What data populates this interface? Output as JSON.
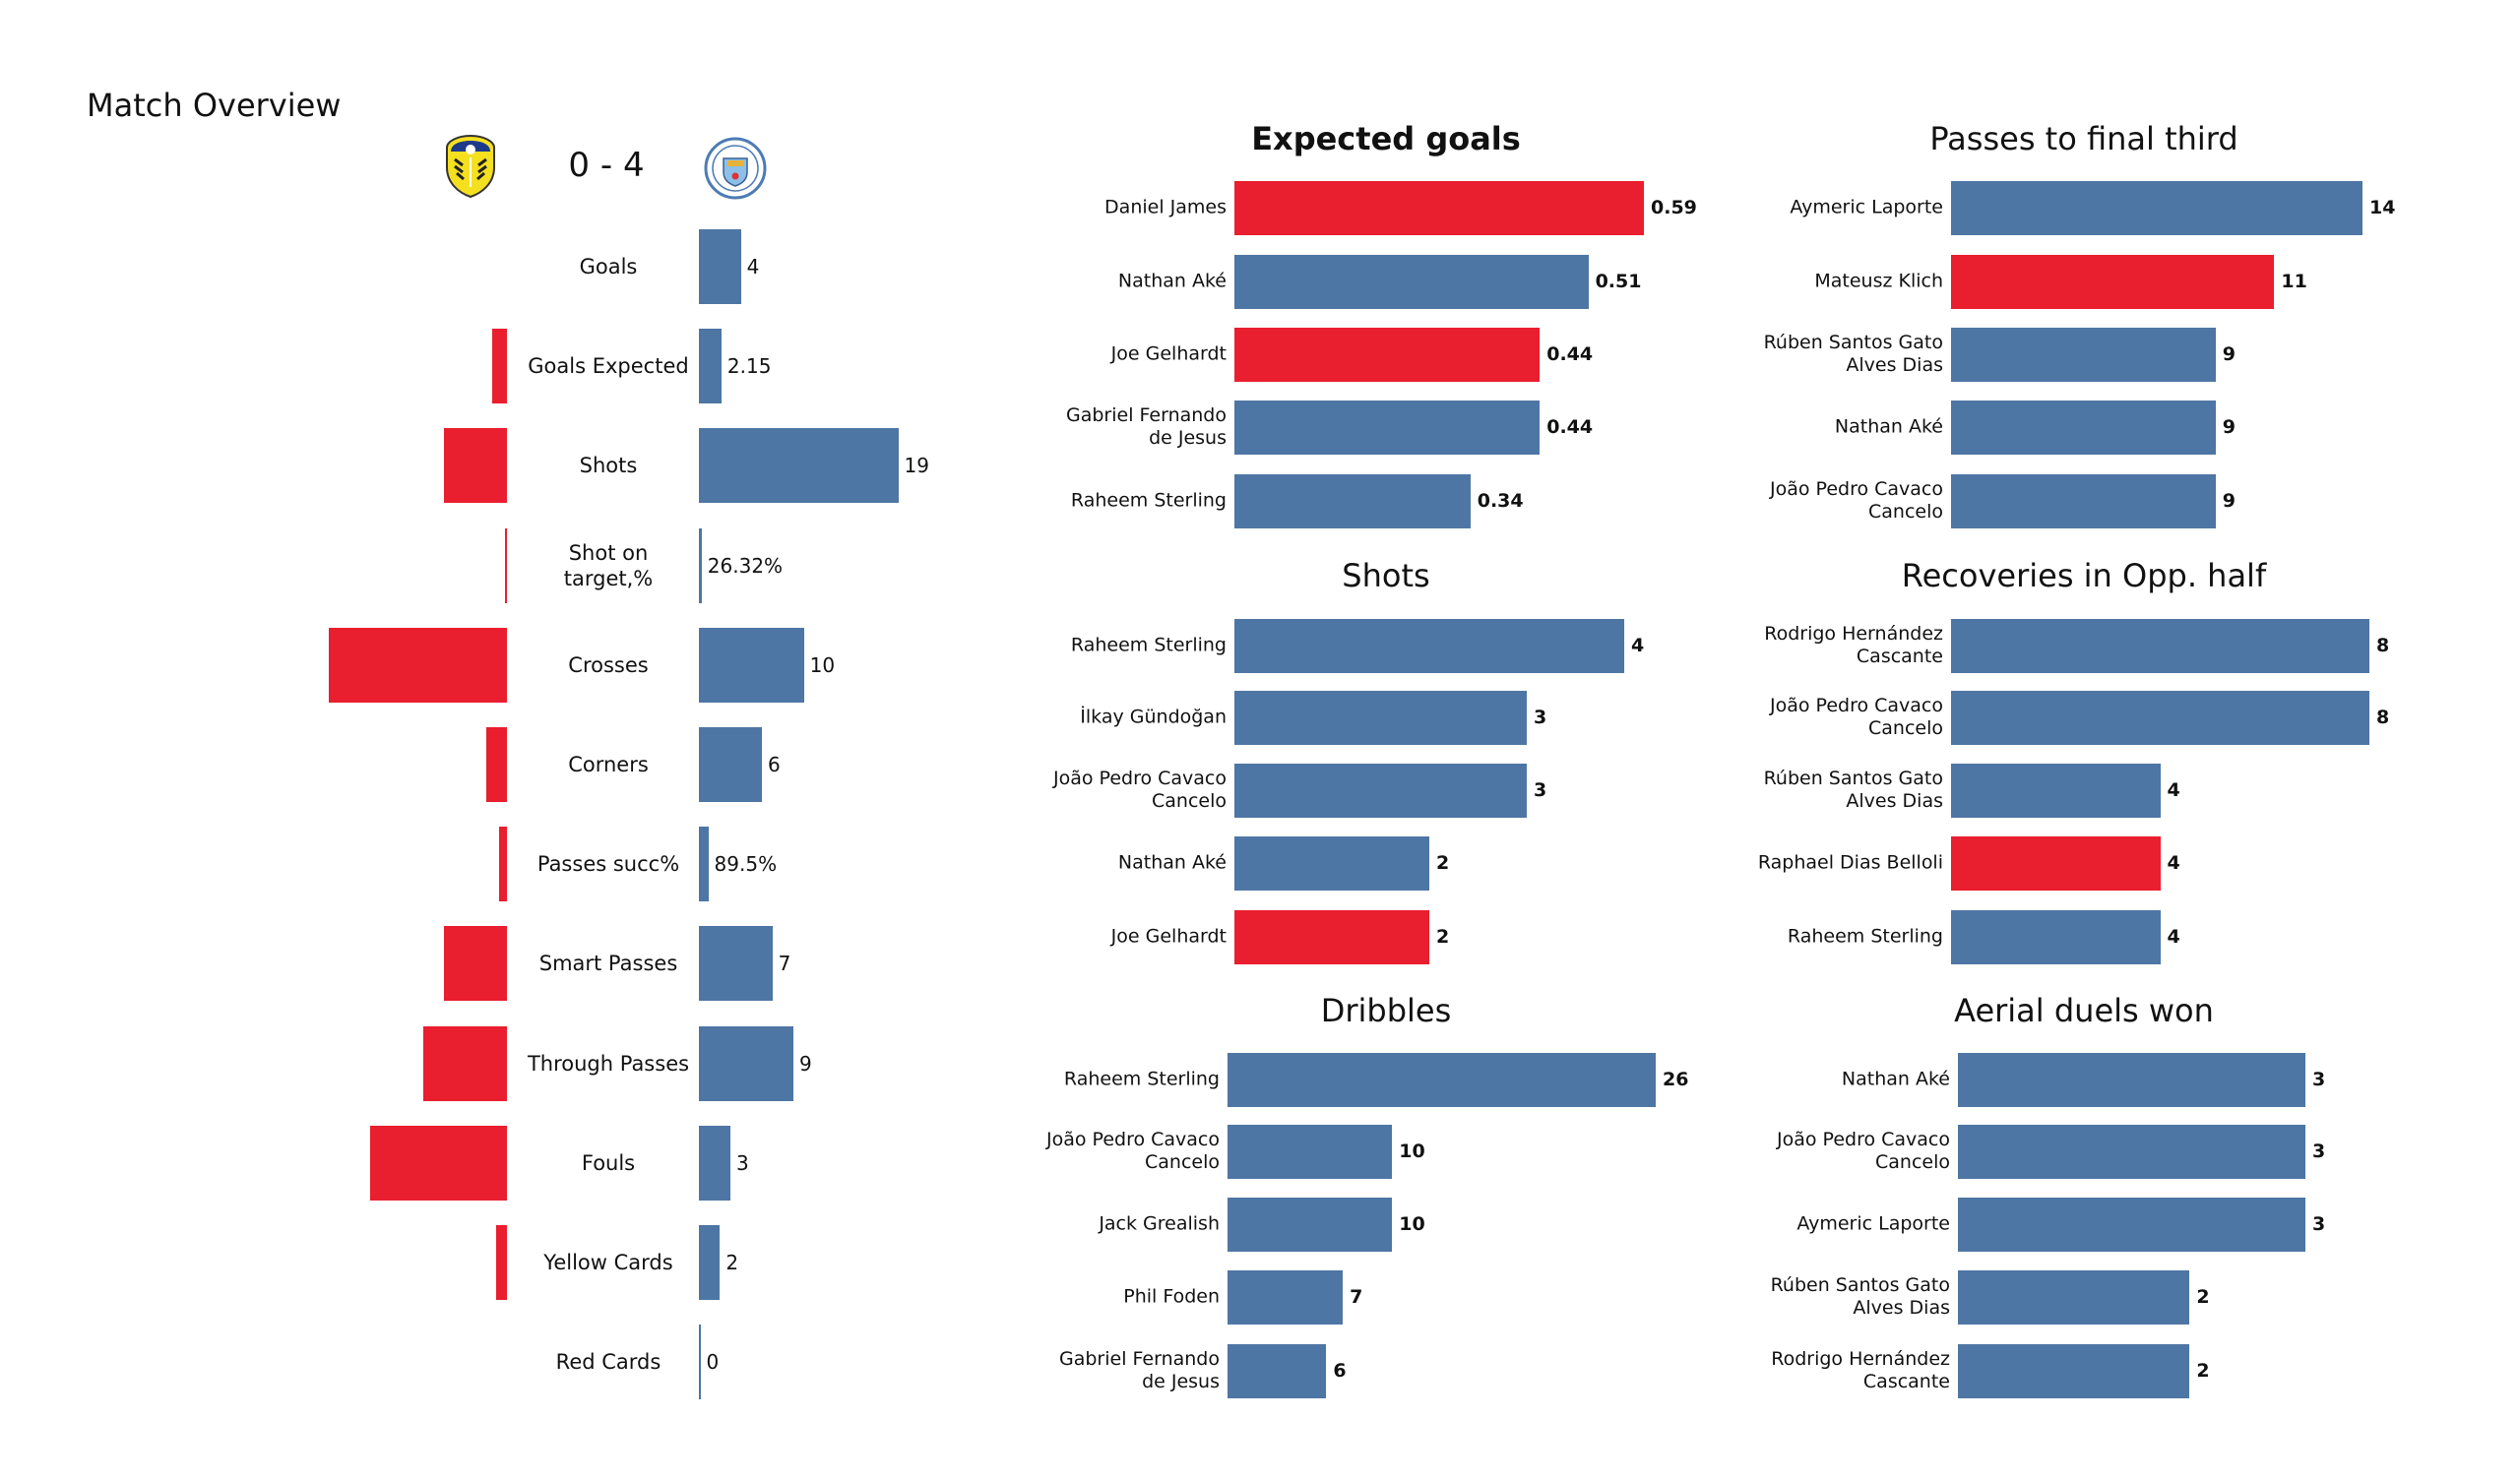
{
  "page_title": "Match Overview",
  "match": {
    "home_team_crest": "leeds-united-crest-icon",
    "away_team_crest": "manchester-city-crest-icon",
    "score": "0 - 4"
  },
  "colors": {
    "home": "#E91E2E",
    "away": "#4E76A4",
    "text": "#111111"
  },
  "chart_data": [
    {
      "type": "bar",
      "title": "Match Overview",
      "orientation": "diverging-horizontal",
      "series": [
        {
          "name": "Leeds United",
          "color": "#E91E2E"
        },
        {
          "name": "Manchester City",
          "color": "#4E76A4"
        }
      ],
      "rows": [
        {
          "label": "Goals",
          "home": "0",
          "away": "4",
          "home_value": 0,
          "away_value": 4
        },
        {
          "label": "Goals Expected",
          "home": "1.44",
          "away": "2.15",
          "home_value": 1.44,
          "away_value": 2.15
        },
        {
          "label": "Shots",
          "home": "6",
          "away": "19",
          "home_value": 6,
          "away_value": 19
        },
        {
          "label": "Shot on\ntarget,%",
          "home": "16.67%",
          "away": "26.32%",
          "home_value": 0.1667,
          "away_value": 0.2632
        },
        {
          "label": "Crosses",
          "home": "17",
          "away": "10",
          "home_value": 17,
          "away_value": 10
        },
        {
          "label": "Corners",
          "home": "2",
          "away": "6",
          "home_value": 2,
          "away_value": 6
        },
        {
          "label": "Passes succ%",
          "home": "79.7%",
          "away": "89.5%",
          "home_value": 0.797,
          "away_value": 0.895
        },
        {
          "label": "Smart Passes",
          "home": "6",
          "away": "7",
          "home_value": 6,
          "away_value": 7
        },
        {
          "label": "Through Passes",
          "home": "8",
          "away": "9",
          "home_value": 8,
          "away_value": 9
        },
        {
          "label": "Fouls",
          "home": "13",
          "away": "3",
          "home_value": 13,
          "away_value": 3
        },
        {
          "label": "Yellow Cards",
          "home": "1",
          "away": "2",
          "home_value": 1,
          "away_value": 2
        },
        {
          "label": "Red Cards",
          "home": "0",
          "away": "0",
          "home_value": 0,
          "away_value": 0
        }
      ]
    },
    {
      "type": "bar",
      "orientation": "horizontal",
      "title": "Expected goals",
      "title_bold": true,
      "categories": [
        "Daniel James",
        "Nathan Aké",
        "Joe Gelhardt",
        "Gabriel Fernando\nde Jesus",
        "Raheem Sterling"
      ],
      "values": [
        0.59,
        0.51,
        0.44,
        0.44,
        0.34
      ],
      "value_labels": [
        "0.59",
        "0.51",
        "0.44",
        "0.44",
        "0.34"
      ],
      "teams": [
        "home",
        "away",
        "home",
        "away",
        "away"
      ],
      "xlim": [
        0,
        0.59
      ]
    },
    {
      "type": "bar",
      "orientation": "horizontal",
      "title": "Passes to final third",
      "title_bold": false,
      "categories": [
        "Aymeric  Laporte",
        "Mateusz Klich",
        "Rúben  Santos Gato\nAlves Dias",
        "Nathan Aké",
        "João Pedro Cavaco\nCancelo"
      ],
      "values": [
        14,
        11,
        9,
        9,
        9
      ],
      "value_labels": [
        "14",
        "11",
        "9",
        "9",
        "9"
      ],
      "teams": [
        "away",
        "home",
        "away",
        "away",
        "away"
      ],
      "xlim": [
        0,
        14
      ]
    },
    {
      "type": "bar",
      "orientation": "horizontal",
      "title": "Shots",
      "title_bold": false,
      "categories": [
        "Raheem Sterling",
        "İlkay Gündoğan",
        "João Pedro Cavaco\nCancelo",
        "Nathan Aké",
        "Joe Gelhardt"
      ],
      "values": [
        4,
        3,
        3,
        2,
        2
      ],
      "value_labels": [
        "4",
        "3",
        "3",
        "2",
        "2"
      ],
      "teams": [
        "away",
        "away",
        "away",
        "away",
        "home"
      ],
      "xlim": [
        0,
        4
      ]
    },
    {
      "type": "bar",
      "orientation": "horizontal",
      "title": "Recoveries in Opp. half",
      "title_bold": false,
      "categories": [
        "Rodrigo Hernández\nCascante",
        "João Pedro Cavaco\nCancelo",
        "Rúben  Santos Gato\nAlves Dias",
        "Raphael Dias Belloli",
        "Raheem Sterling"
      ],
      "values": [
        8,
        8,
        4,
        4,
        4
      ],
      "value_labels": [
        "8",
        "8",
        "4",
        "4",
        "4"
      ],
      "teams": [
        "away",
        "away",
        "away",
        "home",
        "away"
      ],
      "xlim": [
        0,
        8
      ]
    },
    {
      "type": "bar",
      "orientation": "horizontal",
      "title": "Dribbles",
      "title_bold": false,
      "categories": [
        "Raheem Sterling",
        "João Pedro Cavaco\nCancelo",
        "Jack Grealish",
        "Phil Foden",
        "Gabriel Fernando\nde Jesus"
      ],
      "values": [
        26,
        10,
        10,
        7,
        6
      ],
      "value_labels": [
        "26",
        "10",
        "10",
        "7",
        "6"
      ],
      "teams": [
        "away",
        "away",
        "away",
        "away",
        "away"
      ],
      "xlim": [
        0,
        26
      ]
    },
    {
      "type": "bar",
      "orientation": "horizontal",
      "title": "Aerial duels won",
      "title_bold": false,
      "categories": [
        "Nathan Aké",
        "João Pedro Cavaco\nCancelo",
        "Aymeric  Laporte",
        "Rúben  Santos Gato\nAlves Dias",
        "Rodrigo Hernández\nCascante"
      ],
      "values": [
        3,
        3,
        3,
        2,
        2
      ],
      "value_labels": [
        "3",
        "3",
        "3",
        "2",
        "2"
      ],
      "teams": [
        "away",
        "away",
        "away",
        "away",
        "away"
      ],
      "xlim": [
        0,
        3
      ]
    }
  ]
}
